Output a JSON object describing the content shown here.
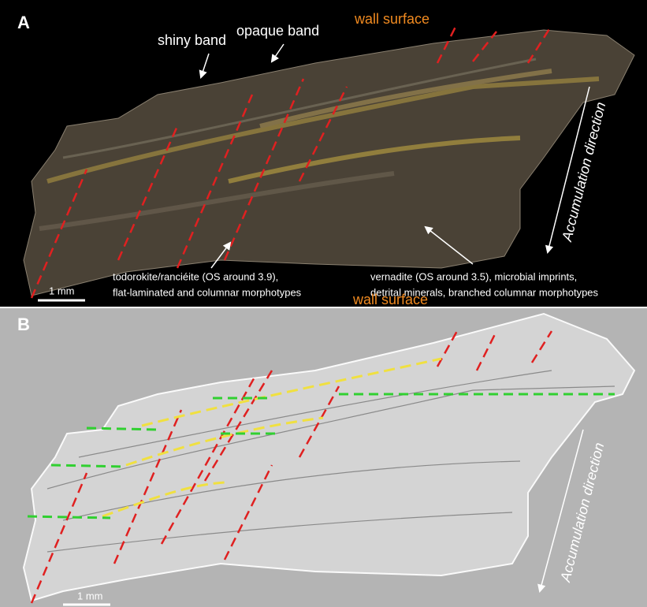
{
  "panel_a": {
    "label": "A",
    "wall_surface": "wall surface",
    "shiny_band": "shiny band",
    "opaque_band": "opaque band",
    "direction": "Accumulation direction",
    "left_note": [
      "todorokite/ranciéite (OS around 3.9),",
      "flat-laminated and columnar morphotypes"
    ],
    "right_note": [
      "vernadite (OS around 3.5), microbial imprints,",
      "detrital minerals, branched columnar morphotypes"
    ],
    "scale": "1 mm"
  },
  "panel_b": {
    "label": "B",
    "wall_surface": "wall surface",
    "direction": "Accumulation direction",
    "scale": "1 mm"
  }
}
